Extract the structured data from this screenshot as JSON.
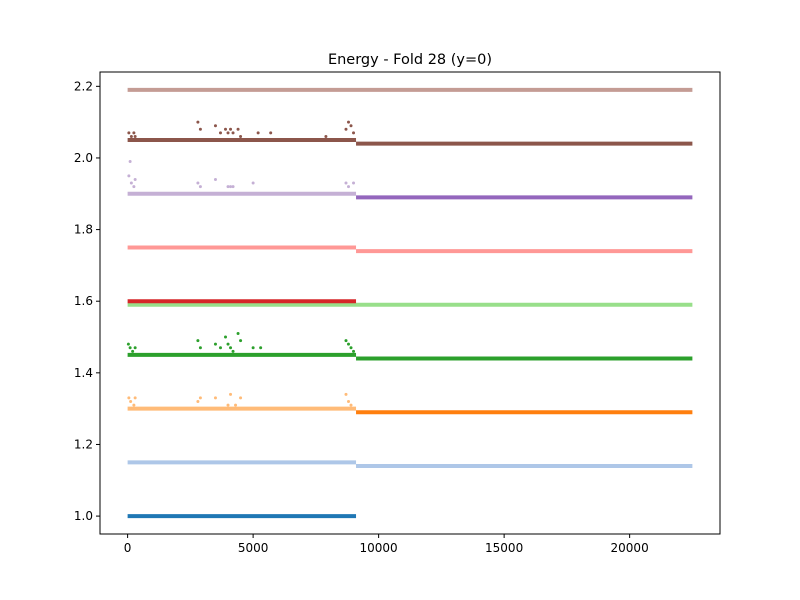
{
  "chart_data": {
    "type": "scatter",
    "title": "Energy - Fold 28 (y=0)",
    "xlabel": "",
    "ylabel": "",
    "xlim": [
      -1100,
      23600
    ],
    "ylim": [
      0.95,
      2.24
    ],
    "xticks": [
      0,
      5000,
      10000,
      15000,
      20000
    ],
    "xtick_labels": [
      "0",
      "5000",
      "10000",
      "15000",
      "20000"
    ],
    "yticks": [
      1.0,
      1.2,
      1.4,
      1.6,
      1.8,
      2.0,
      2.2
    ],
    "ytick_labels": [
      "1.0",
      "1.2",
      "1.4",
      "1.6",
      "1.8",
      "2.0",
      "2.2"
    ],
    "grid": false,
    "legend": "none",
    "series": [
      {
        "color": "#1f77b4",
        "segments": [
          {
            "x": [
              0,
              9100
            ],
            "y": 1.0
          }
        ],
        "outliers": []
      },
      {
        "color": "#aec7e8",
        "segments": [
          {
            "x": [
              0,
              9100
            ],
            "y": 1.15
          },
          {
            "x": [
              9100,
              22500
            ],
            "y": 1.14
          }
        ],
        "outliers": []
      },
      {
        "color": "#ffbb78",
        "segments": [
          {
            "x": [
              0,
              9100
            ],
            "y": 1.3
          }
        ],
        "outliers": [
          [
            50,
            1.33
          ],
          [
            120,
            1.32
          ],
          [
            250,
            1.31
          ],
          [
            300,
            1.33
          ],
          [
            2800,
            1.32
          ],
          [
            2900,
            1.33
          ],
          [
            3500,
            1.33
          ],
          [
            4000,
            1.31
          ],
          [
            4100,
            1.34
          ],
          [
            4300,
            1.31
          ],
          [
            4500,
            1.33
          ],
          [
            8700,
            1.34
          ],
          [
            8800,
            1.32
          ],
          [
            8900,
            1.31
          ]
        ]
      },
      {
        "color": "#ff7f0e",
        "segments": [
          {
            "x": [
              9100,
              22500
            ],
            "y": 1.29
          }
        ],
        "outliers": []
      },
      {
        "color": "#2ca02c",
        "segments": [
          {
            "x": [
              0,
              9100
            ],
            "y": 1.45
          },
          {
            "x": [
              9100,
              22500
            ],
            "y": 1.44
          }
        ],
        "outliers": [
          [
            30,
            1.48
          ],
          [
            100,
            1.47
          ],
          [
            200,
            1.46
          ],
          [
            300,
            1.47
          ],
          [
            2800,
            1.49
          ],
          [
            2900,
            1.47
          ],
          [
            3500,
            1.48
          ],
          [
            3700,
            1.47
          ],
          [
            3900,
            1.5
          ],
          [
            4000,
            1.48
          ],
          [
            4100,
            1.47
          ],
          [
            4200,
            1.46
          ],
          [
            4400,
            1.51
          ],
          [
            4500,
            1.49
          ],
          [
            5000,
            1.47
          ],
          [
            5300,
            1.47
          ],
          [
            8700,
            1.49
          ],
          [
            8800,
            1.48
          ],
          [
            8900,
            1.47
          ],
          [
            9000,
            1.46
          ]
        ]
      },
      {
        "color": "#98df8a",
        "segments": [
          {
            "x": [
              0,
              22500
            ],
            "y": 1.59
          }
        ],
        "outliers": []
      },
      {
        "color": "#d62728",
        "segments": [
          {
            "x": [
              0,
              9100
            ],
            "y": 1.6
          }
        ],
        "outliers": []
      },
      {
        "color": "#ff9896",
        "segments": [
          {
            "x": [
              0,
              9100
            ],
            "y": 1.75
          },
          {
            "x": [
              9100,
              22500
            ],
            "y": 1.74
          }
        ],
        "outliers": []
      },
      {
        "color": "#c5b0d5",
        "segments": [
          {
            "x": [
              0,
              9100
            ],
            "y": 1.9
          }
        ],
        "outliers": [
          [
            50,
            1.95
          ],
          [
            100,
            1.99
          ],
          [
            150,
            1.93
          ],
          [
            250,
            1.92
          ],
          [
            300,
            1.94
          ],
          [
            2800,
            1.93
          ],
          [
            2900,
            1.92
          ],
          [
            3500,
            1.94
          ],
          [
            4000,
            1.92
          ],
          [
            4100,
            1.92
          ],
          [
            4200,
            1.92
          ],
          [
            5000,
            1.93
          ],
          [
            8700,
            1.93
          ],
          [
            8800,
            1.92
          ],
          [
            9000,
            1.93
          ]
        ]
      },
      {
        "color": "#9467bd",
        "segments": [
          {
            "x": [
              9100,
              22500
            ],
            "y": 1.89
          }
        ],
        "outliers": []
      },
      {
        "color": "#8c564b",
        "segments": [
          {
            "x": [
              0,
              9100
            ],
            "y": 2.05
          },
          {
            "x": [
              9100,
              22500
            ],
            "y": 2.04
          }
        ],
        "outliers": [
          [
            50,
            2.07
          ],
          [
            150,
            2.06
          ],
          [
            250,
            2.07
          ],
          [
            300,
            2.06
          ],
          [
            2800,
            2.1
          ],
          [
            2900,
            2.08
          ],
          [
            3500,
            2.09
          ],
          [
            3700,
            2.07
          ],
          [
            3900,
            2.08
          ],
          [
            4000,
            2.07
          ],
          [
            4100,
            2.08
          ],
          [
            4200,
            2.07
          ],
          [
            4400,
            2.08
          ],
          [
            4500,
            2.06
          ],
          [
            5200,
            2.07
          ],
          [
            5700,
            2.07
          ],
          [
            7900,
            2.06
          ],
          [
            8700,
            2.08
          ],
          [
            8800,
            2.1
          ],
          [
            8900,
            2.09
          ],
          [
            9000,
            2.07
          ]
        ]
      },
      {
        "color": "#c49c94",
        "segments": [
          {
            "x": [
              0,
              22500
            ],
            "y": 2.19
          }
        ],
        "outliers": []
      }
    ]
  }
}
